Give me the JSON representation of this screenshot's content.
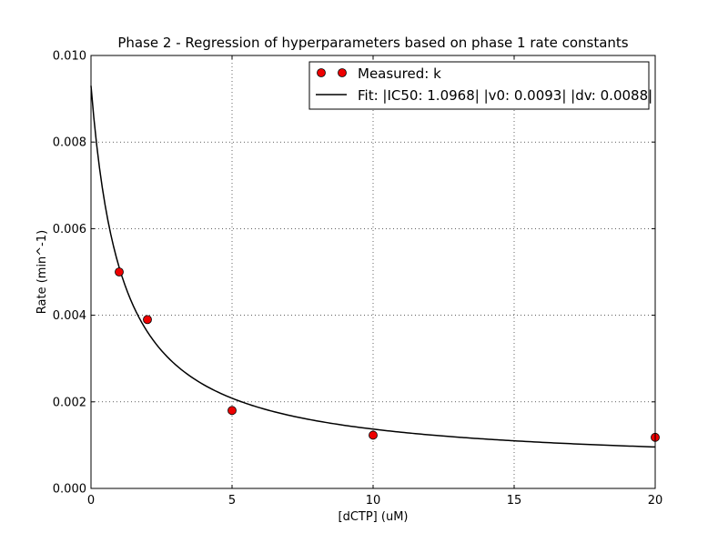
{
  "chart_data": {
    "type": "scatter",
    "title": "Phase 2 - Regression of hyperparameters based on phase 1 rate constants",
    "xlabel": "[dCTP] (uM)",
    "ylabel": "Rate (min^-1)",
    "xlim": [
      0,
      20
    ],
    "ylim": [
      0,
      0.01
    ],
    "x_ticks": [
      0,
      5,
      10,
      15,
      20
    ],
    "x_tick_labels": [
      "0",
      "5",
      "10",
      "15",
      "20"
    ],
    "y_ticks": [
      0,
      0.002,
      0.004,
      0.006,
      0.008,
      0.01
    ],
    "y_tick_labels": [
      "0.000",
      "0.002",
      "0.004",
      "0.006",
      "0.008",
      "0.010"
    ],
    "grid": true,
    "legend_position": "top-right",
    "series": [
      {
        "name": "Measured: k",
        "kind": "scatter",
        "color": "#ee0000",
        "x": [
          1,
          2,
          5,
          10,
          20
        ],
        "y": [
          0.005,
          0.0039,
          0.0018,
          0.00123,
          0.00118
        ]
      },
      {
        "name": "Fit: |IC50: 1.0968| |v0: 0.0093| |dv: 0.0088|",
        "kind": "line",
        "color": "#000000",
        "model": {
          "IC50": 1.0968,
          "v0": 0.0093,
          "dv": 0.0088
        }
      }
    ]
  }
}
